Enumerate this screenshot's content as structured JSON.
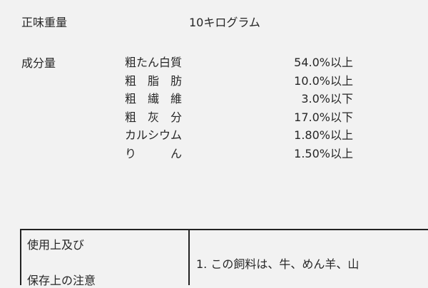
{
  "net_weight": {
    "label": "正味重量",
    "value": "10キログラム"
  },
  "composition": {
    "label": "成分量",
    "rows": [
      [
        "粗たん白質",
        "54.0%以上"
      ],
      [
        "粗　脂　肪",
        "10.0%以上"
      ],
      [
        "粗　繊　維",
        "3.0%以下"
      ],
      [
        "粗　灰　分",
        "17.0%以下"
      ],
      [
        "カルシウム",
        "1.80%以上"
      ],
      [
        "り　　　ん",
        "1.50%以上"
      ]
    ]
  },
  "notes_table": {
    "heading": [
      "使用上及び",
      "保存上の注意"
    ],
    "text": "1. この飼料は、牛、めん羊、山"
  }
}
